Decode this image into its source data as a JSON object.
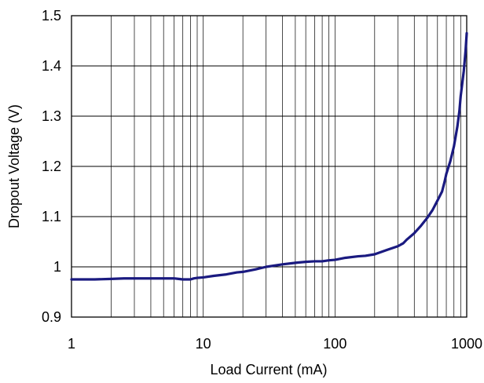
{
  "chart_data": {
    "type": "line",
    "title": "",
    "xlabel": "Load Current (mA)",
    "ylabel": "Dropout Voltage (V)",
    "xscale": "log",
    "xlim": [
      1,
      1000
    ],
    "ylim": [
      0.9,
      1.5
    ],
    "grid": true,
    "legend": "none",
    "x_ticks": [
      1,
      10,
      100,
      1000
    ],
    "x_tick_labels": [
      "1",
      "10",
      "100",
      "1000"
    ],
    "y_ticks": [
      0.9,
      1.0,
      1.1,
      1.2,
      1.3,
      1.4,
      1.5
    ],
    "y_tick_labels": [
      "0.9",
      "1",
      "1.1",
      "1.2",
      "1.3",
      "1.4",
      "1.5"
    ],
    "colors": {
      "line": "#1a1a80",
      "grid": "#000000",
      "axis": "#000000"
    },
    "series": [
      {
        "x": [
          1,
          1.5,
          2,
          2.5,
          3,
          4,
          5,
          6,
          6.5,
          7,
          7.5,
          8,
          8.5,
          9,
          10,
          12,
          15,
          18,
          20,
          25,
          30,
          40,
          50,
          60,
          70,
          80,
          90,
          100,
          120,
          150,
          170,
          200,
          250,
          300,
          330,
          350,
          400,
          450,
          500,
          550,
          600,
          650,
          680,
          700,
          750,
          800,
          850,
          880,
          900,
          920,
          950,
          980,
          1000
        ],
        "y": [
          0.975,
          0.975,
          0.976,
          0.977,
          0.977,
          0.977,
          0.977,
          0.977,
          0.976,
          0.975,
          0.975,
          0.975,
          0.977,
          0.978,
          0.979,
          0.982,
          0.985,
          0.989,
          0.99,
          0.995,
          1.0,
          1.005,
          1.008,
          1.01,
          1.011,
          1.011,
          1.013,
          1.014,
          1.018,
          1.021,
          1.022,
          1.025,
          1.034,
          1.041,
          1.047,
          1.054,
          1.067,
          1.082,
          1.097,
          1.113,
          1.132,
          1.15,
          1.17,
          1.185,
          1.21,
          1.24,
          1.28,
          1.31,
          1.34,
          1.36,
          1.39,
          1.43,
          1.465
        ]
      }
    ]
  }
}
